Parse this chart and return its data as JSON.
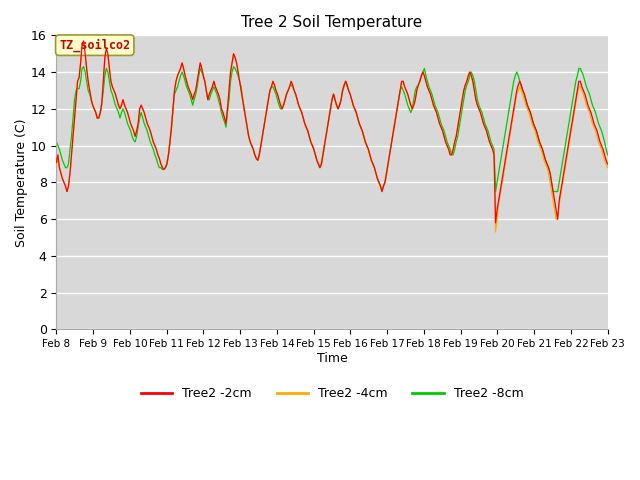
{
  "title": "Tree 2 Soil Temperature",
  "xlabel": "Time",
  "ylabel": "Soil Temperature (C)",
  "ylim": [
    0,
    16
  ],
  "yticks": [
    0,
    2,
    4,
    6,
    8,
    10,
    12,
    14,
    16
  ],
  "bg_color": "#d8d8d8",
  "fig_bg": "#ffffff",
  "annotation_text": "TZ_soilco2",
  "annotation_color": "#cc0000",
  "annotation_bg": "#ffffcc",
  "annotation_edge": "#999933",
  "line_colors": [
    "#ff0000",
    "#ffaa00",
    "#00cc00"
  ],
  "line_labels": [
    "Tree2 -2cm",
    "Tree2 -4cm",
    "Tree2 -8cm"
  ],
  "line_width": 0.9,
  "x_tick_labels": [
    "Feb 8",
    "Feb 9",
    "Feb 10",
    "Feb 11",
    "Feb 12",
    "Feb 13",
    "Feb 14",
    "Feb 15",
    "Feb 16",
    "Feb 17",
    "Feb 18",
    "Feb 19",
    "Feb 20",
    "Feb 21",
    "Feb 22",
    "Feb 23"
  ],
  "t_2cm": [
    9.1,
    9.5,
    8.8,
    8.5,
    8.2,
    8.0,
    7.8,
    7.5,
    7.8,
    8.5,
    9.5,
    10.5,
    11.5,
    12.5,
    13.5,
    13.7,
    14.5,
    15.5,
    15.7,
    15.0,
    14.2,
    13.5,
    13.0,
    12.5,
    12.2,
    12.0,
    11.8,
    11.5,
    11.5,
    11.8,
    12.3,
    13.5,
    14.8,
    15.3,
    15.0,
    14.2,
    13.5,
    13.2,
    13.0,
    12.8,
    12.5,
    12.2,
    12.0,
    12.2,
    12.5,
    12.2,
    12.0,
    11.8,
    11.5,
    11.2,
    11.0,
    10.8,
    10.5,
    10.8,
    11.2,
    12.0,
    12.2,
    12.0,
    11.8,
    11.5,
    11.2,
    11.0,
    10.8,
    10.5,
    10.2,
    10.0,
    9.8,
    9.5,
    9.3,
    9.0,
    8.8,
    8.7,
    8.8,
    9.0,
    9.5,
    10.2,
    11.0,
    12.0,
    13.0,
    13.5,
    13.8,
    14.0,
    14.2,
    14.5,
    14.2,
    13.8,
    13.5,
    13.2,
    13.0,
    12.8,
    12.5,
    12.8,
    13.0,
    13.5,
    14.0,
    14.5,
    14.2,
    13.8,
    13.5,
    13.0,
    12.5,
    12.8,
    13.0,
    13.2,
    13.5,
    13.2,
    13.0,
    12.8,
    12.5,
    12.0,
    11.8,
    11.5,
    11.2,
    12.0,
    13.0,
    14.0,
    14.5,
    15.0,
    14.8,
    14.5,
    14.0,
    13.5,
    13.0,
    12.5,
    12.0,
    11.5,
    11.0,
    10.5,
    10.2,
    10.0,
    9.8,
    9.5,
    9.3,
    9.2,
    9.5,
    10.0,
    10.5,
    11.0,
    11.5,
    12.0,
    12.5,
    13.0,
    13.2,
    13.5,
    13.3,
    13.0,
    12.8,
    12.5,
    12.2,
    12.0,
    12.2,
    12.5,
    12.8,
    13.0,
    13.2,
    13.5,
    13.3,
    13.0,
    12.8,
    12.5,
    12.2,
    12.0,
    11.8,
    11.5,
    11.2,
    11.0,
    10.8,
    10.5,
    10.2,
    10.0,
    9.8,
    9.5,
    9.2,
    9.0,
    8.8,
    9.0,
    9.5,
    10.0,
    10.5,
    11.0,
    11.5,
    12.0,
    12.5,
    12.8,
    12.5,
    12.2,
    12.0,
    12.2,
    12.5,
    13.0,
    13.3,
    13.5,
    13.3,
    13.0,
    12.8,
    12.5,
    12.2,
    12.0,
    11.8,
    11.5,
    11.2,
    11.0,
    10.8,
    10.5,
    10.2,
    10.0,
    9.8,
    9.5,
    9.2,
    9.0,
    8.8,
    8.5,
    8.2,
    8.0,
    7.8,
    7.5,
    7.8,
    8.0,
    8.5,
    9.0,
    9.5,
    10.0,
    10.5,
    11.0,
    11.5,
    12.0,
    12.5,
    13.0,
    13.5,
    13.5,
    13.2,
    13.0,
    12.8,
    12.5,
    12.2,
    12.0,
    12.2,
    12.5,
    13.0,
    13.3,
    13.5,
    13.8,
    14.0,
    13.8,
    13.5,
    13.2,
    13.0,
    12.8,
    12.5,
    12.2,
    12.0,
    11.8,
    11.5,
    11.2,
    11.0,
    10.8,
    10.5,
    10.2,
    10.0,
    9.8,
    9.5,
    9.5,
    9.8,
    10.2,
    10.5,
    11.0,
    11.5,
    12.0,
    12.5,
    13.0,
    13.3,
    13.5,
    13.8,
    14.0,
    13.8,
    13.5,
    13.0,
    12.5,
    12.2,
    12.0,
    11.8,
    11.5,
    11.2,
    11.0,
    10.8,
    10.5,
    10.2,
    10.0,
    9.8,
    9.5,
    5.8,
    6.5,
    7.0,
    7.5,
    8.0,
    8.5,
    9.0,
    9.5,
    10.0,
    10.5,
    11.0,
    11.5,
    12.0,
    12.5,
    13.0,
    13.3,
    13.5,
    13.3,
    13.0,
    12.8,
    12.5,
    12.2,
    12.0,
    11.8,
    11.5,
    11.2,
    11.0,
    10.8,
    10.5,
    10.2,
    10.0,
    9.8,
    9.5,
    9.2,
    9.0,
    8.8,
    8.5,
    8.0,
    7.5,
    7.0,
    6.5,
    6.0,
    7.0,
    7.5,
    8.0,
    8.5,
    9.0,
    9.5,
    10.0,
    10.5,
    11.0,
    11.5,
    12.0,
    12.5,
    13.0,
    13.5,
    13.5,
    13.2,
    13.0,
    12.8,
    12.5,
    12.2,
    12.0,
    11.8,
    11.5,
    11.2,
    11.0,
    10.8,
    10.5,
    10.2,
    10.0,
    9.8,
    9.5,
    9.2,
    9.0
  ],
  "t_4cm": [
    9.0,
    9.2,
    8.8,
    8.5,
    8.2,
    8.0,
    7.8,
    7.5,
    7.8,
    8.5,
    9.5,
    10.5,
    11.5,
    12.5,
    13.5,
    13.7,
    14.5,
    15.5,
    15.7,
    15.0,
    14.2,
    13.5,
    13.0,
    12.5,
    12.2,
    12.0,
    11.8,
    11.5,
    11.5,
    11.8,
    12.3,
    13.5,
    14.8,
    15.3,
    15.0,
    14.2,
    13.5,
    13.2,
    13.0,
    12.8,
    12.5,
    12.2,
    12.0,
    12.2,
    12.5,
    12.2,
    12.0,
    11.8,
    11.5,
    11.2,
    11.0,
    10.8,
    10.5,
    10.8,
    11.2,
    12.0,
    12.2,
    12.0,
    11.8,
    11.5,
    11.2,
    11.0,
    10.8,
    10.5,
    10.2,
    10.0,
    9.8,
    9.5,
    9.3,
    9.0,
    8.8,
    8.7,
    8.8,
    9.0,
    9.5,
    10.2,
    11.0,
    12.0,
    13.0,
    13.5,
    13.8,
    14.0,
    14.2,
    14.5,
    14.2,
    13.8,
    13.5,
    13.2,
    13.0,
    12.8,
    12.5,
    12.8,
    13.0,
    13.5,
    14.0,
    14.5,
    14.2,
    13.8,
    13.5,
    13.0,
    12.5,
    12.8,
    13.0,
    13.2,
    13.5,
    13.2,
    13.0,
    12.8,
    12.5,
    12.0,
    11.8,
    11.5,
    11.2,
    12.0,
    13.0,
    14.0,
    14.5,
    15.0,
    14.8,
    14.5,
    14.0,
    13.5,
    13.0,
    12.5,
    12.0,
    11.5,
    11.0,
    10.5,
    10.2,
    10.0,
    9.8,
    9.5,
    9.3,
    9.2,
    9.5,
    10.0,
    10.5,
    11.0,
    11.5,
    12.0,
    12.5,
    13.0,
    13.2,
    13.5,
    13.3,
    13.0,
    12.8,
    12.5,
    12.2,
    12.0,
    12.2,
    12.5,
    12.8,
    13.0,
    13.2,
    13.5,
    13.3,
    13.0,
    12.8,
    12.5,
    12.2,
    12.0,
    11.8,
    11.5,
    11.2,
    11.0,
    10.8,
    10.5,
    10.2,
    10.0,
    9.8,
    9.5,
    9.2,
    9.0,
    8.8,
    9.0,
    9.5,
    10.0,
    10.5,
    11.0,
    11.5,
    12.0,
    12.5,
    12.8,
    12.5,
    12.2,
    12.0,
    12.2,
    12.5,
    13.0,
    13.3,
    13.5,
    13.3,
    13.0,
    12.8,
    12.5,
    12.2,
    12.0,
    11.8,
    11.5,
    11.2,
    11.0,
    10.8,
    10.5,
    10.2,
    10.0,
    9.8,
    9.5,
    9.2,
    9.0,
    8.8,
    8.5,
    8.2,
    8.0,
    7.8,
    7.5,
    7.8,
    8.0,
    8.5,
    9.0,
    9.5,
    10.0,
    10.5,
    11.0,
    11.5,
    12.0,
    12.5,
    13.0,
    13.5,
    13.5,
    13.2,
    13.0,
    12.8,
    12.5,
    12.2,
    12.0,
    12.2,
    12.5,
    13.0,
    13.3,
    13.5,
    13.8,
    14.0,
    13.8,
    13.5,
    13.2,
    13.0,
    12.8,
    12.5,
    12.2,
    12.0,
    11.8,
    11.5,
    11.2,
    11.0,
    10.8,
    10.5,
    10.2,
    10.0,
    9.8,
    9.5,
    9.5,
    9.8,
    10.2,
    10.5,
    11.0,
    11.5,
    12.0,
    12.5,
    13.0,
    13.3,
    13.5,
    13.8,
    14.0,
    13.8,
    13.5,
    13.0,
    12.5,
    12.2,
    12.0,
    11.8,
    11.5,
    11.2,
    11.0,
    10.8,
    10.5,
    10.2,
    10.0,
    9.8,
    9.5,
    5.3,
    6.0,
    6.8,
    7.3,
    7.8,
    8.2,
    8.8,
    9.3,
    9.8,
    10.3,
    10.8,
    11.3,
    11.8,
    12.3,
    12.8,
    13.0,
    13.2,
    13.0,
    12.8,
    12.5,
    12.2,
    12.0,
    11.8,
    11.5,
    11.2,
    11.0,
    10.8,
    10.5,
    10.2,
    10.0,
    9.8,
    9.5,
    9.2,
    9.0,
    8.8,
    8.5,
    8.0,
    7.5,
    7.0,
    6.5,
    6.0,
    6.0,
    6.8,
    7.3,
    7.8,
    8.3,
    8.8,
    9.3,
    9.8,
    10.3,
    10.8,
    11.3,
    11.8,
    12.3,
    12.8,
    13.2,
    13.2,
    13.0,
    12.8,
    12.5,
    12.2,
    12.0,
    11.8,
    11.5,
    11.2,
    11.0,
    10.8,
    10.5,
    10.2,
    10.0,
    9.8,
    9.5,
    9.2,
    9.0,
    8.8
  ],
  "t_8cm": [
    10.2,
    10.0,
    9.8,
    9.5,
    9.2,
    9.0,
    8.8,
    8.8,
    9.0,
    9.8,
    10.5,
    11.5,
    12.5,
    13.0,
    13.1,
    13.1,
    13.5,
    14.2,
    14.3,
    14.0,
    13.5,
    13.0,
    12.8,
    12.5,
    12.2,
    12.0,
    11.8,
    11.5,
    11.5,
    11.8,
    12.3,
    13.0,
    13.8,
    14.2,
    14.0,
    13.5,
    13.0,
    12.8,
    12.5,
    12.2,
    12.0,
    11.8,
    11.5,
    11.8,
    12.0,
    11.8,
    11.5,
    11.2,
    11.0,
    10.8,
    10.5,
    10.3,
    10.2,
    10.5,
    11.0,
    11.5,
    11.8,
    11.5,
    11.2,
    11.0,
    10.8,
    10.5,
    10.2,
    10.0,
    9.8,
    9.5,
    9.3,
    9.0,
    8.8,
    8.8,
    8.7,
    8.7,
    8.8,
    9.0,
    9.5,
    10.2,
    11.0,
    12.0,
    12.8,
    13.0,
    13.2,
    13.5,
    13.8,
    14.0,
    13.8,
    13.5,
    13.2,
    13.0,
    12.8,
    12.5,
    12.2,
    12.5,
    12.8,
    13.2,
    13.8,
    14.2,
    14.0,
    13.8,
    13.5,
    13.0,
    12.5,
    12.5,
    12.8,
    13.0,
    13.2,
    13.0,
    12.8,
    12.5,
    12.2,
    11.8,
    11.5,
    11.3,
    11.0,
    11.8,
    12.5,
    13.5,
    14.0,
    14.3,
    14.2,
    14.0,
    13.8,
    13.5,
    13.2,
    12.5,
    12.0,
    11.5,
    11.0,
    10.5,
    10.2,
    10.0,
    9.8,
    9.5,
    9.3,
    9.2,
    9.5,
    10.0,
    10.5,
    11.0,
    11.5,
    12.0,
    12.5,
    13.0,
    13.2,
    13.2,
    13.0,
    12.8,
    12.5,
    12.2,
    12.0,
    12.0,
    12.2,
    12.5,
    12.8,
    13.0,
    13.2,
    13.3,
    13.2,
    13.0,
    12.8,
    12.5,
    12.2,
    12.0,
    11.8,
    11.5,
    11.2,
    11.0,
    10.8,
    10.5,
    10.2,
    10.0,
    9.8,
    9.5,
    9.2,
    9.0,
    8.8,
    9.0,
    9.5,
    10.0,
    10.5,
    11.0,
    11.5,
    12.0,
    12.5,
    12.8,
    12.5,
    12.2,
    12.0,
    12.2,
    12.5,
    13.0,
    13.2,
    13.5,
    13.2,
    13.0,
    12.8,
    12.5,
    12.2,
    12.0,
    11.8,
    11.5,
    11.2,
    11.0,
    10.8,
    10.5,
    10.2,
    10.0,
    9.8,
    9.5,
    9.2,
    9.0,
    8.8,
    8.5,
    8.2,
    8.0,
    7.8,
    7.5,
    7.8,
    8.0,
    8.5,
    9.0,
    9.5,
    10.0,
    10.5,
    11.0,
    11.5,
    12.0,
    12.5,
    13.0,
    13.2,
    13.0,
    12.8,
    12.5,
    12.2,
    12.0,
    11.8,
    12.0,
    12.5,
    13.0,
    13.2,
    13.3,
    13.5,
    13.8,
    14.0,
    14.2,
    13.8,
    13.5,
    13.2,
    13.0,
    12.8,
    12.5,
    12.2,
    12.0,
    11.8,
    11.5,
    11.2,
    11.0,
    10.8,
    10.5,
    10.2,
    10.0,
    9.8,
    9.5,
    9.5,
    9.8,
    10.2,
    10.5,
    11.0,
    11.5,
    12.0,
    12.5,
    13.0,
    13.3,
    13.5,
    13.8,
    14.0,
    13.8,
    13.5,
    13.0,
    12.5,
    12.2,
    12.0,
    11.8,
    11.5,
    11.2,
    11.0,
    10.8,
    10.5,
    10.2,
    10.0,
    9.8,
    7.5,
    8.0,
    8.5,
    9.0,
    9.5,
    10.0,
    10.5,
    11.0,
    11.5,
    12.0,
    12.5,
    13.0,
    13.5,
    13.8,
    14.0,
    13.8,
    13.5,
    13.2,
    13.0,
    12.8,
    12.5,
    12.2,
    12.0,
    11.8,
    11.5,
    11.2,
    11.0,
    10.8,
    10.5,
    10.2,
    10.0,
    9.8,
    9.5,
    9.2,
    9.0,
    8.8,
    8.5,
    8.0,
    7.5,
    7.5,
    7.5,
    7.5,
    8.0,
    8.5,
    9.0,
    9.5,
    10.0,
    10.5,
    11.0,
    11.5,
    12.0,
    12.5,
    13.0,
    13.5,
    13.8,
    14.2,
    14.2,
    14.0,
    13.8,
    13.5,
    13.2,
    13.0,
    12.8,
    12.5,
    12.2,
    12.0,
    11.8,
    11.5,
    11.2,
    11.0,
    10.8,
    10.5,
    10.2,
    9.8,
    9.5
  ]
}
